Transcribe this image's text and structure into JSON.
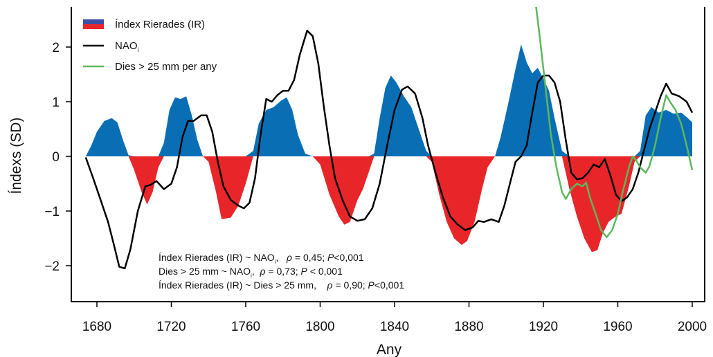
{
  "chart_data": {
    "type": "area",
    "xlabel": "Any",
    "ylabel": "Índexs (SD)",
    "xlim": [
      1660,
      2005
    ],
    "ylim": [
      -2.75,
      2.75
    ],
    "xticks": [
      1680,
      1720,
      1760,
      1800,
      1840,
      1880,
      1920,
      1960,
      2000
    ],
    "yticks": [
      -2,
      -1,
      0,
      1,
      2
    ],
    "xtick_labels": [
      "1680",
      "1720",
      "1760",
      "1800",
      "1840",
      "1880",
      "1920",
      "1960",
      "2000"
    ],
    "ytick_labels": [
      "−2",
      "−1",
      "0",
      "1",
      "2"
    ],
    "grid": false,
    "legend_position": "top-left",
    "legend": {
      "ir_label": "Índex Rierades (IR)",
      "nao_label": "NAO",
      "nao_sub": "i",
      "days_label": "Dies > 25 mm per any"
    },
    "colors": {
      "positive": "#0a6eb4",
      "negative": "#e8262a",
      "nao": "#000000",
      "days": "#5cb85c"
    },
    "annotations": {
      "line1": {
        "a": "Índex Rierades (IR) ~ NAO",
        "sub": "i",
        "b": ",   ",
        "rho": "ρ",
        "c": " = 0,45; ",
        "p": "P",
        "d": "<0,001"
      },
      "line2": {
        "a": "Dies > 25 mm ~ NAO",
        "sub": "i",
        "b": ",  ",
        "rho": "ρ",
        "c": " = 0,73; ",
        "p": "P",
        "d": " < 0,001"
      },
      "line3": {
        "a": "Índex Rierades (IR) ~ Dies > 25 mm,    ",
        "rho": "ρ",
        "c": " = 0,90; ",
        "p": "P",
        "d": "<0,001"
      }
    },
    "series": [
      {
        "key": "ir",
        "name": "Índex Rierades (IR)",
        "points": [
          [
            1674,
            0
          ],
          [
            1677,
            0.2
          ],
          [
            1680,
            0.45
          ],
          [
            1684,
            0.65
          ],
          [
            1688,
            0.7
          ],
          [
            1691,
            0.62
          ],
          [
            1694,
            0.3
          ],
          [
            1697,
            0.02
          ],
          [
            1700,
            -0.25
          ],
          [
            1704,
            -0.65
          ],
          [
            1707,
            -0.88
          ],
          [
            1710,
            -0.65
          ],
          [
            1713,
            -0.2
          ],
          [
            1716,
            0.25
          ],
          [
            1719,
            0.85
          ],
          [
            1722,
            1.08
          ],
          [
            1725,
            1.05
          ],
          [
            1728,
            1.1
          ],
          [
            1731,
            0.75
          ],
          [
            1734,
            0.3
          ],
          [
            1737,
            0.0
          ],
          [
            1740,
            -0.1
          ],
          [
            1744,
            -0.65
          ],
          [
            1747,
            -1.15
          ],
          [
            1752,
            -1.12
          ],
          [
            1756,
            -0.9
          ],
          [
            1760,
            -0.5
          ],
          [
            1764,
            0.1
          ],
          [
            1767,
            0.6
          ],
          [
            1771,
            0.85
          ],
          [
            1775,
            0.9
          ],
          [
            1779,
            1.02
          ],
          [
            1782,
            1.08
          ],
          [
            1785,
            0.85
          ],
          [
            1788,
            0.4
          ],
          [
            1792,
            0.05
          ],
          [
            1796,
            0.0
          ],
          [
            1800,
            -0.15
          ],
          [
            1805,
            -0.7
          ],
          [
            1810,
            -1.1
          ],
          [
            1813,
            -1.25
          ],
          [
            1816,
            -1.2
          ],
          [
            1820,
            -0.8
          ],
          [
            1823,
            -0.6
          ],
          [
            1826,
            -0.3
          ],
          [
            1829,
            0.05
          ],
          [
            1832,
            0.7
          ],
          [
            1835,
            1.25
          ],
          [
            1838,
            1.48
          ],
          [
            1841,
            1.35
          ],
          [
            1845,
            1.1
          ],
          [
            1849,
            0.9
          ],
          [
            1853,
            0.5
          ],
          [
            1857,
            0.1
          ],
          [
            1860,
            -0.1
          ],
          [
            1864,
            -0.7
          ],
          [
            1868,
            -1.2
          ],
          [
            1872,
            -1.5
          ],
          [
            1876,
            -1.62
          ],
          [
            1879,
            -1.55
          ],
          [
            1883,
            -1.2
          ],
          [
            1887,
            -0.6
          ],
          [
            1890,
            -0.2
          ],
          [
            1894,
            0.0
          ],
          [
            1897,
            0.35
          ],
          [
            1901,
            0.95
          ],
          [
            1905,
            1.6
          ],
          [
            1908,
            2.05
          ],
          [
            1911,
            1.72
          ],
          [
            1914,
            1.52
          ],
          [
            1917,
            1.62
          ],
          [
            1920,
            1.42
          ],
          [
            1923,
            1.2
          ],
          [
            1926,
            0.7
          ],
          [
            1930,
            0.1
          ],
          [
            1934,
            -0.6
          ],
          [
            1938,
            -1.1
          ],
          [
            1942,
            -1.5
          ],
          [
            1946,
            -1.75
          ],
          [
            1949,
            -1.72
          ],
          [
            1952,
            -1.4
          ],
          [
            1955,
            -1.2
          ],
          [
            1958,
            -1.12
          ],
          [
            1962,
            -1.05
          ],
          [
            1966,
            -0.55
          ],
          [
            1969,
            -0.1
          ],
          [
            1972,
            0.1
          ],
          [
            1975,
            0.75
          ],
          [
            1978,
            0.9
          ],
          [
            1982,
            0.8
          ],
          [
            1986,
            0.85
          ],
          [
            1990,
            0.78
          ],
          [
            1994,
            0.8
          ],
          [
            1997,
            0.72
          ],
          [
            2000,
            0.62
          ]
        ]
      },
      {
        "key": "nao",
        "name": "NAO",
        "points": [
          [
            1674,
            -0.02
          ],
          [
            1678,
            -0.4
          ],
          [
            1682,
            -0.8
          ],
          [
            1686,
            -1.2
          ],
          [
            1689,
            -1.6
          ],
          [
            1692,
            -2.02
          ],
          [
            1695,
            -2.05
          ],
          [
            1698,
            -1.7
          ],
          [
            1702,
            -1.0
          ],
          [
            1706,
            -0.55
          ],
          [
            1709,
            -0.52
          ],
          [
            1712,
            -0.45
          ],
          [
            1716,
            -0.6
          ],
          [
            1720,
            -0.5
          ],
          [
            1723,
            -0.2
          ],
          [
            1726,
            0.35
          ],
          [
            1729,
            0.65
          ],
          [
            1732,
            0.65
          ],
          [
            1736,
            0.75
          ],
          [
            1739,
            0.75
          ],
          [
            1742,
            0.45
          ],
          [
            1745,
            -0.1
          ],
          [
            1748,
            -0.55
          ],
          [
            1752,
            -0.8
          ],
          [
            1756,
            -0.9
          ],
          [
            1759,
            -0.95
          ],
          [
            1762,
            -0.85
          ],
          [
            1765,
            -0.4
          ],
          [
            1768,
            0.4
          ],
          [
            1771,
            1.05
          ],
          [
            1774,
            1.0
          ],
          [
            1777,
            1.12
          ],
          [
            1780,
            1.2
          ],
          [
            1783,
            1.2
          ],
          [
            1786,
            1.4
          ],
          [
            1789,
            1.85
          ],
          [
            1793,
            2.3
          ],
          [
            1796,
            2.2
          ],
          [
            1799,
            1.7
          ],
          [
            1802,
            0.9
          ],
          [
            1805,
            0.2
          ],
          [
            1808,
            -0.4
          ],
          [
            1812,
            -0.8
          ],
          [
            1816,
            -1.1
          ],
          [
            1820,
            -1.18
          ],
          [
            1824,
            -1.15
          ],
          [
            1828,
            -0.95
          ],
          [
            1832,
            -0.5
          ],
          [
            1836,
            0.2
          ],
          [
            1840,
            0.85
          ],
          [
            1844,
            1.22
          ],
          [
            1847,
            1.28
          ],
          [
            1851,
            1.15
          ],
          [
            1855,
            0.7
          ],
          [
            1858,
            0.2
          ],
          [
            1862,
            -0.3
          ],
          [
            1866,
            -0.75
          ],
          [
            1870,
            -1.1
          ],
          [
            1874,
            -1.25
          ],
          [
            1878,
            -1.35
          ],
          [
            1882,
            -1.3
          ],
          [
            1885,
            -1.18
          ],
          [
            1888,
            -1.2
          ],
          [
            1892,
            -1.15
          ],
          [
            1896,
            -1.2
          ],
          [
            1899,
            -0.9
          ],
          [
            1902,
            -0.5
          ],
          [
            1905,
            -0.1
          ],
          [
            1908,
            0.0
          ],
          [
            1911,
            0.2
          ],
          [
            1914,
            0.8
          ],
          [
            1917,
            1.35
          ],
          [
            1920,
            1.48
          ],
          [
            1923,
            1.48
          ],
          [
            1926,
            1.35
          ],
          [
            1929,
            1.0
          ],
          [
            1932,
            0.3
          ],
          [
            1935,
            -0.3
          ],
          [
            1938,
            -0.42
          ],
          [
            1941,
            -0.4
          ],
          [
            1944,
            -0.3
          ],
          [
            1947,
            -0.15
          ],
          [
            1950,
            -0.2
          ],
          [
            1953,
            -0.05
          ],
          [
            1956,
            -0.35
          ],
          [
            1959,
            -0.7
          ],
          [
            1962,
            -0.82
          ],
          [
            1965,
            -0.75
          ],
          [
            1968,
            -0.6
          ],
          [
            1971,
            -0.3
          ],
          [
            1974,
            0.1
          ],
          [
            1977,
            0.5
          ],
          [
            1980,
            0.8
          ],
          [
            1983,
            1.1
          ],
          [
            1986,
            1.33
          ],
          [
            1989,
            1.15
          ],
          [
            1993,
            1.1
          ],
          [
            1997,
            1.0
          ],
          [
            2000,
            0.8
          ]
        ]
      },
      {
        "key": "days",
        "name": "Dies > 25 mm per any",
        "points": [
          [
            1916,
            2.75
          ],
          [
            1918,
            2.2
          ],
          [
            1920,
            1.6
          ],
          [
            1922,
            1.0
          ],
          [
            1924,
            0.4
          ],
          [
            1927,
            -0.2
          ],
          [
            1930,
            -0.65
          ],
          [
            1932,
            -0.78
          ],
          [
            1935,
            -0.6
          ],
          [
            1938,
            -0.5
          ],
          [
            1941,
            -0.55
          ],
          [
            1943,
            -0.48
          ],
          [
            1945,
            -0.75
          ],
          [
            1948,
            -1.05
          ],
          [
            1951,
            -1.35
          ],
          [
            1954,
            -1.48
          ],
          [
            1957,
            -1.35
          ],
          [
            1960,
            -1.05
          ],
          [
            1963,
            -0.6
          ],
          [
            1966,
            -0.2
          ],
          [
            1968,
            0.0
          ],
          [
            1970,
            -0.08
          ],
          [
            1972,
            -0.2
          ],
          [
            1975,
            -0.3
          ],
          [
            1977,
            -0.18
          ],
          [
            1980,
            0.2
          ],
          [
            1983,
            0.7
          ],
          [
            1986,
            1.12
          ],
          [
            1988,
            1.0
          ],
          [
            1991,
            0.85
          ],
          [
            1994,
            0.6
          ],
          [
            1997,
            0.2
          ],
          [
            2000,
            -0.25
          ]
        ]
      }
    ]
  }
}
